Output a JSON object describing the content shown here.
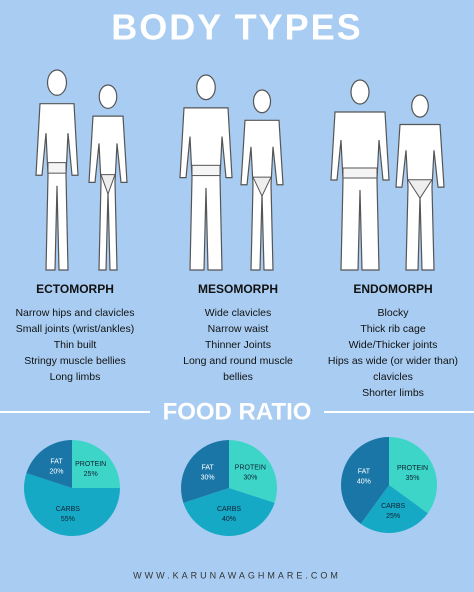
{
  "title": "BODY TYPES",
  "body_types": [
    {
      "name": "ECTOMORPH",
      "traits": [
        "Narrow hips and clavicles",
        "Small joints (wrist/ankles)",
        "Thin built",
        "Stringy muscle bellies",
        "Long limbs"
      ]
    },
    {
      "name": "MESOMORPH",
      "traits": [
        "Wide clavicles",
        "Narrow waist",
        "Thinner Joints",
        "Long and round muscle",
        "bellies"
      ]
    },
    {
      "name": "ENDOMORPH",
      "traits": [
        "Blocky",
        "Thick rib cage",
        "Wide/Thicker joints",
        "Hips as wide (or wider than)",
        "clavicles",
        "Shorter limbs"
      ]
    }
  ],
  "food_ratio_title": "FOOD RATIO",
  "pies": [
    {
      "categories": [
        "PROTEIN",
        "CARBS",
        "FAT"
      ],
      "values": [
        25,
        55,
        20
      ],
      "value_labels": [
        "25%",
        "55%",
        "20%"
      ],
      "colors": [
        "#3dd5c8",
        "#16a9c6",
        "#1b76a8"
      ]
    },
    {
      "categories": [
        "PROTEIN",
        "CARBS",
        "FAT"
      ],
      "values": [
        30,
        40,
        30
      ],
      "value_labels": [
        "30%",
        "40%",
        "30%"
      ],
      "colors": [
        "#3dd5c8",
        "#16a9c6",
        "#1b76a8"
      ]
    },
    {
      "categories": [
        "PROTEIN",
        "CARBS",
        "FAT"
      ],
      "values": [
        35,
        25,
        40
      ],
      "value_labels": [
        "35%",
        "25%",
        "40%"
      ],
      "colors": [
        "#3dd5c8",
        "#16a9c6",
        "#1b76a8"
      ]
    }
  ],
  "footer": "WWW.KARUNAWAGHMARE.COM"
}
